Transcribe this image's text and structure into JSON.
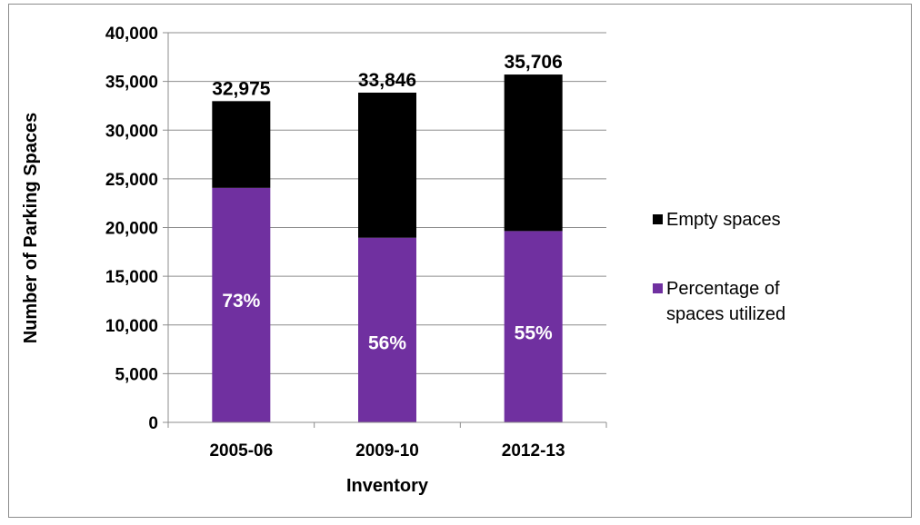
{
  "chart_data": {
    "type": "bar",
    "stacked": true,
    "categories": [
      "2005-06",
      "2009-10",
      "2012-13"
    ],
    "series": [
      {
        "name": "Percentage of spaces utilized",
        "color": "#7030a0",
        "values": [
          24071,
          18954,
          19638
        ],
        "labels": [
          "73%",
          "56%",
          "55%"
        ]
      },
      {
        "name": "Empty spaces",
        "color": "#000000",
        "values": [
          8904,
          14892,
          16068
        ]
      }
    ],
    "totals": [
      32975,
      33846,
      35706
    ],
    "total_labels": [
      "32,975",
      "33,846",
      "35,706"
    ],
    "xlabel": "Inventory",
    "ylabel": "Number of Parking Spaces",
    "ylim": [
      0,
      40000
    ],
    "yticks": [
      0,
      5000,
      10000,
      15000,
      20000,
      25000,
      30000,
      35000,
      40000
    ],
    "ytick_labels": [
      "0",
      "5,000",
      "10,000",
      "15,000",
      "20,000",
      "25,000",
      "30,000",
      "35,000",
      "40,000"
    ],
    "grid": true,
    "legend_position": "right",
    "legend": [
      "Empty spaces",
      "Percentage of spaces utilized"
    ]
  }
}
